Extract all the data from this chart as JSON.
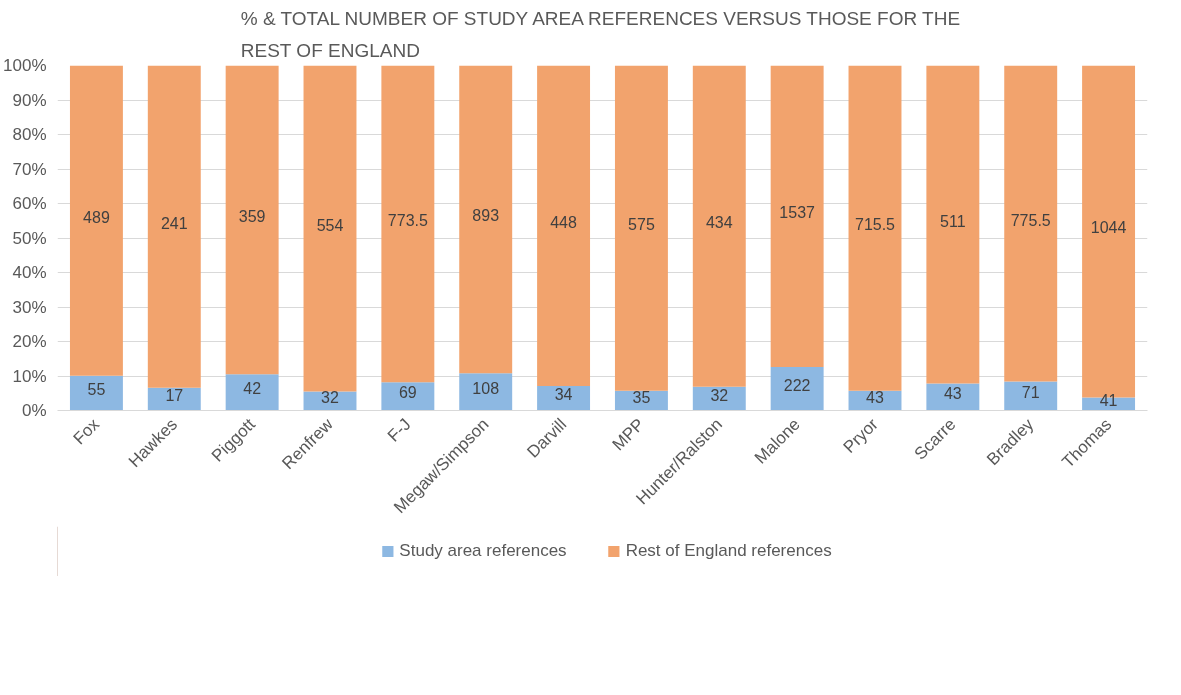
{
  "chart_data": {
    "type": "bar",
    "stacked": true,
    "title": "% & TOTAL NUMBER OF STUDY AREA REFERENCES VERSUS THOSE FOR THE REST OF ENGLAND",
    "categories": [
      "Fox",
      "Hawkes",
      "Piggott",
      "Renfrew",
      "F-J",
      "Megaw/Simpson",
      "Darvill",
      "MPP",
      "Hunter/Ralston",
      "Malone",
      "Pryor",
      "Scarre",
      "Bradley",
      "Thomas"
    ],
    "series": [
      {
        "name": "Study area references",
        "color": "#8db8e2",
        "values": [
          10.1,
          6.6,
          10.5,
          5.5,
          8.2,
          10.8,
          7.1,
          5.7,
          6.9,
          12.6,
          5.7,
          7.8,
          8.4,
          3.8
        ]
      },
      {
        "name": "Rest of England references",
        "color": "#f2a36d",
        "values": [
          89.9,
          93.4,
          89.5,
          94.5,
          91.8,
          89.2,
          92.9,
          94.3,
          93.1,
          87.4,
          94.3,
          92.2,
          91.6,
          96.2
        ]
      }
    ],
    "annotations": [
      "55",
      "17",
      "42",
      "32",
      "69",
      "108",
      "34",
      "35",
      "32",
      "222",
      "43",
      "43",
      "71",
      "41",
      "489",
      "241",
      "359",
      "554",
      "773.5",
      "893",
      "448",
      "575",
      "434",
      "1537",
      "715.5",
      "511",
      "775.5",
      "1044"
    ],
    "ylim": [
      0,
      100
    ],
    "yticks": [
      {
        "value": 0,
        "label": "0%"
      },
      {
        "value": 10,
        "label": "10%"
      },
      {
        "value": 20,
        "label": "20%"
      },
      {
        "value": 30,
        "label": "30%"
      },
      {
        "value": 40,
        "label": "40%"
      },
      {
        "value": 50,
        "label": "50%"
      },
      {
        "value": 60,
        "label": "60%"
      },
      {
        "value": 70,
        "label": "70%"
      },
      {
        "value": 80,
        "label": "80%"
      },
      {
        "value": 90,
        "label": "90%"
      },
      {
        "value": 100,
        "label": "100%"
      }
    ],
    "grid": "y",
    "legend": "bottom"
  }
}
